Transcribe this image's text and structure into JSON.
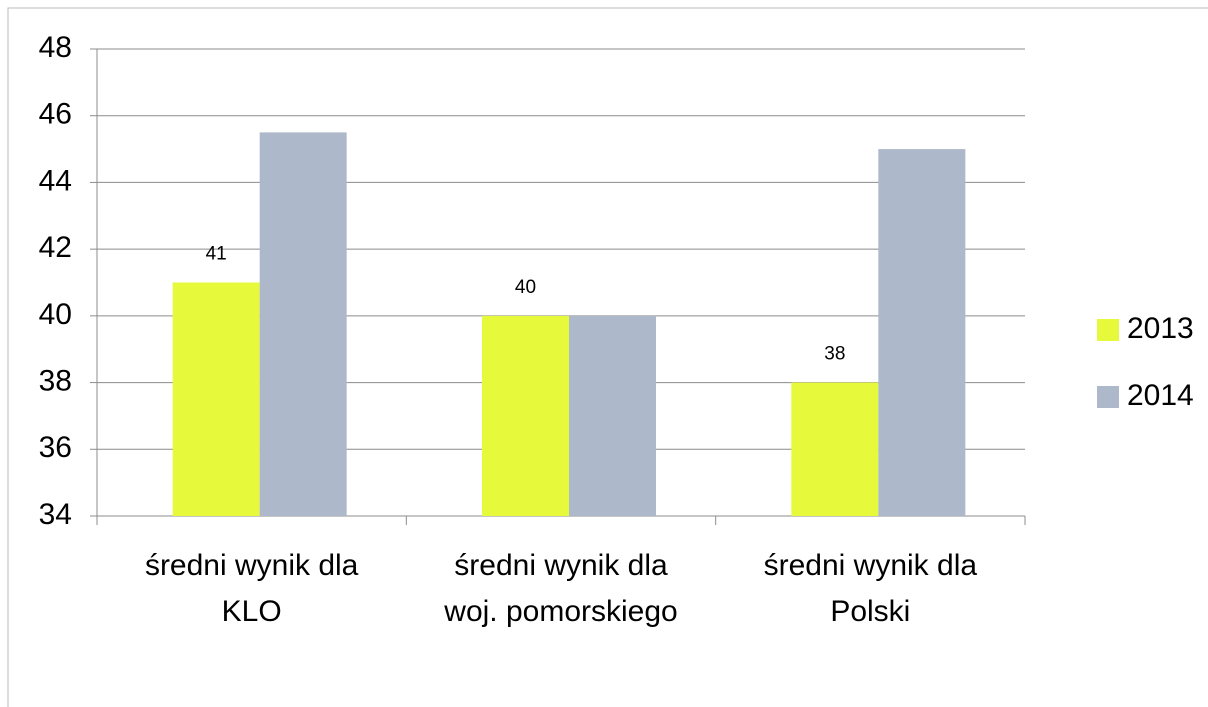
{
  "chart_data": {
    "type": "bar",
    "categories": [
      "średni wynik dla KLO",
      "średni wynik dla woj. pomorskiego",
      "średni wynik dla Polski"
    ],
    "series": [
      {
        "name": "2013",
        "color": "#e6f93a",
        "values": [
          41,
          40,
          38
        ]
      },
      {
        "name": "2014",
        "color": "#adb9cb",
        "values": [
          45.5,
          40,
          45
        ]
      }
    ],
    "ylim": [
      34,
      48
    ],
    "yticks": [
      34,
      36,
      38,
      40,
      42,
      44,
      46,
      48
    ],
    "grid": true,
    "legend": "right",
    "data_labels_series": "2013"
  }
}
